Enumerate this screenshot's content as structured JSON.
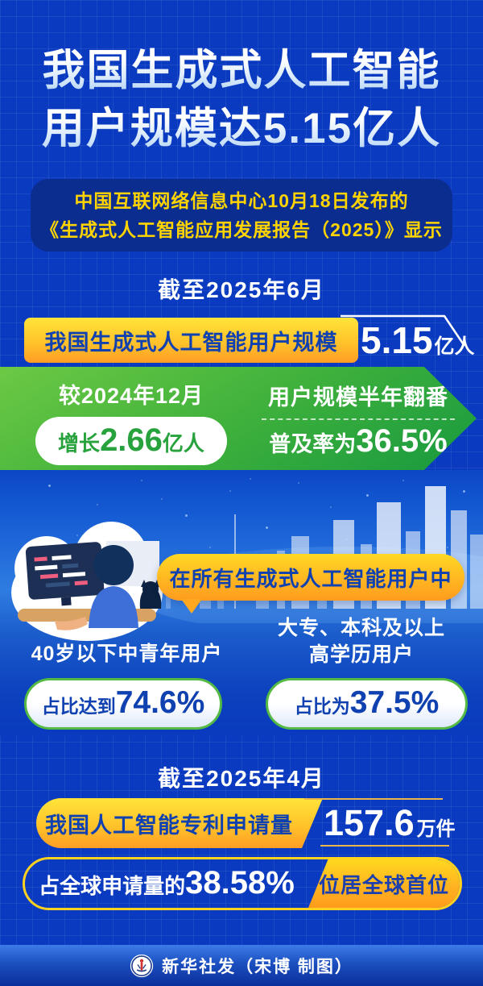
{
  "title": {
    "line1": "我国生成式人工智能",
    "line2": "用户规模达5.15亿人"
  },
  "source_note": {
    "line1": "中国互联网络信息中心10月18日发布的",
    "line2": "《生成式人工智能应用发展报告（2025）》显示"
  },
  "section_users": {
    "as_of": "截至2025年6月",
    "metric_label": "我国生成式人工智能用户规模",
    "metric_value": "5.15",
    "metric_unit": "亿人",
    "growth": {
      "compare_label": "较2024年12月",
      "growth_prefix": "增长",
      "growth_value": "2.66",
      "growth_unit": "亿人",
      "double_note": "用户规模半年翻番",
      "penetration_prefix": "普及率为",
      "penetration_value": "36.5%"
    }
  },
  "section_demographics": {
    "banner": "在所有生成式人工智能用户中",
    "stats": [
      {
        "label_line1": "40岁以下中青年用户",
        "label_line2": "",
        "prefix": "占比达到",
        "value": "74.6%"
      },
      {
        "label_line1": "大专、本科及以上",
        "label_line2": "高学历用户",
        "prefix": "占比为",
        "value": "37.5%"
      }
    ]
  },
  "section_patents": {
    "as_of": "截至2025年4月",
    "metric_label": "我国人工智能专利申请量",
    "metric_value": "157.6",
    "metric_unit": "万件",
    "share_prefix": "占全球申请量的",
    "share_value": "38.58%",
    "rank_badge": "位居全球首位"
  },
  "footer": {
    "credit": "新华社发（宋博 制图）"
  },
  "colors": {
    "background_blue": "#0a3abf",
    "deep_blue_box": "#0a2d8f",
    "accent_yellow": "#ffd21f",
    "accent_orange": "#ff9d24",
    "accent_green": "#3fb13c",
    "text_blue": "#1041b0",
    "text_yellow": "#ffd400",
    "green_text": "#28a23d"
  }
}
